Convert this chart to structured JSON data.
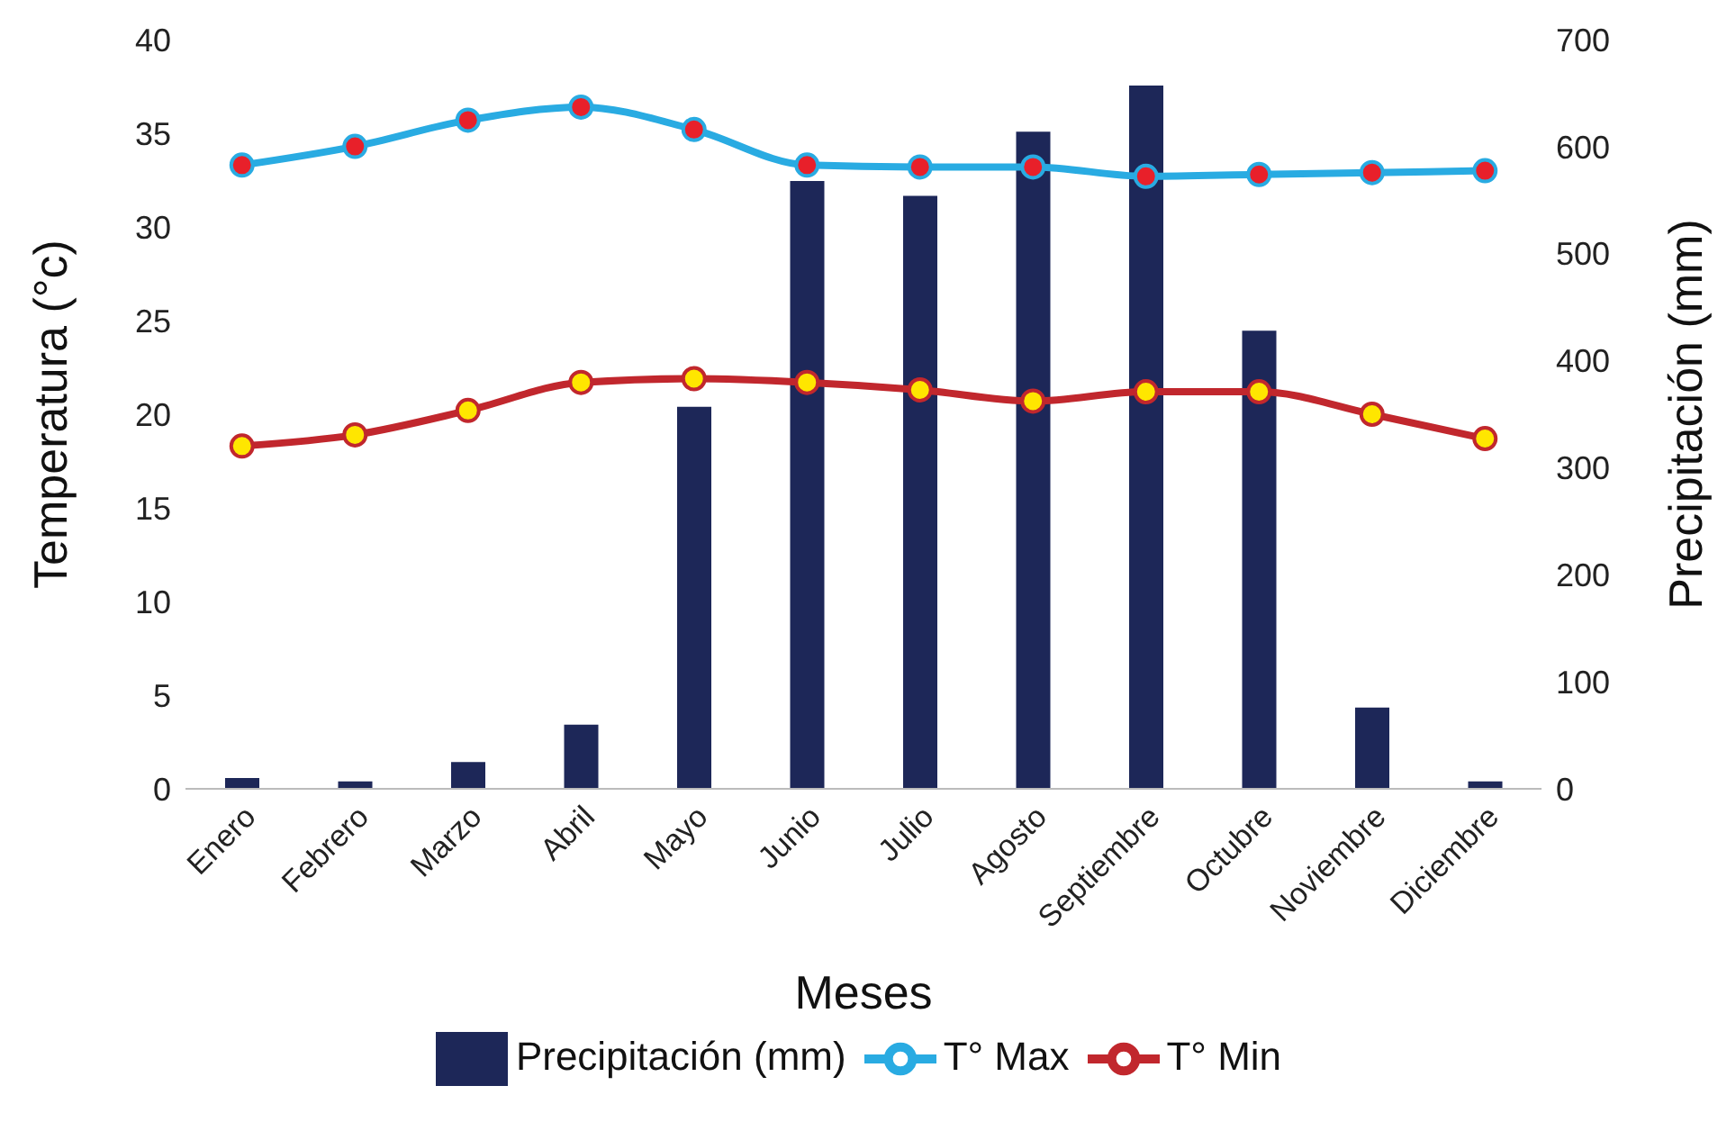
{
  "chart_data": {
    "type": "bar",
    "xlabel": "Meses",
    "ylabel": "Temperatura (°c)",
    "y2label": "Precipitación (mm)",
    "categories": [
      "Enero",
      "Febrero",
      "Marzo",
      "Abril",
      "Mayo",
      "Junio",
      "Julio",
      "Agosto",
      "Septiembre",
      "Octubre",
      "Noviembre",
      "Diciembre"
    ],
    "series": [
      {
        "name": "Precipitación (mm)",
        "axis": "y2",
        "color": "#1d2758",
        "values": [
          10,
          7,
          25,
          60,
          357,
          568,
          554,
          614,
          657,
          428,
          76,
          7
        ]
      },
      {
        "name": "T° Max",
        "type": "line",
        "color": "#29abe2",
        "values": [
          33.3,
          34.3,
          35.7,
          36.4,
          35.2,
          33.3,
          33.2,
          33.2,
          32.7,
          32.8,
          32.9,
          33.0
        ]
      },
      {
        "name": "T° Min",
        "type": "line",
        "color": "#c1272d",
        "values": [
          18.3,
          18.9,
          20.2,
          21.7,
          21.9,
          21.7,
          21.3,
          20.7,
          21.2,
          21.2,
          20.0,
          18.7
        ]
      }
    ],
    "ylim": [
      0,
      40
    ],
    "yticks": [
      0,
      5,
      10,
      15,
      20,
      25,
      30,
      35,
      40
    ],
    "y2lim": [
      0,
      700
    ],
    "y2ticks": [
      0,
      100,
      200,
      300,
      400,
      500,
      600,
      700
    ],
    "grid": false,
    "legend": "bottom",
    "marker": "circle",
    "line_style": "solid"
  }
}
